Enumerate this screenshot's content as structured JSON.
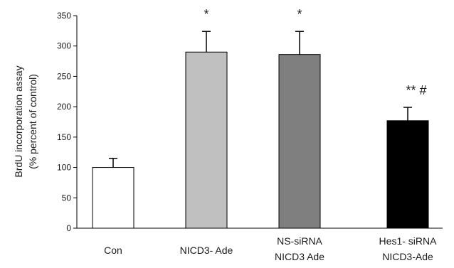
{
  "chart_data": {
    "type": "bar",
    "title": "",
    "xlabel": "",
    "ylabel_lines": [
      "BrdU incorporation assay",
      "(% percent of control)"
    ],
    "categories": [
      [
        "Con"
      ],
      [
        "NICD3- Ade"
      ],
      [
        "NS-siRNA",
        "NICD3 Ade"
      ],
      [
        "Hes1- siRNA",
        "NICD3-Ade"
      ]
    ],
    "values": [
      100,
      290,
      286,
      177
    ],
    "errors": [
      15,
      34,
      38,
      22
    ],
    "annotations": [
      "",
      "*",
      "*",
      "**   #"
    ],
    "ylim": [
      0,
      350
    ],
    "yticks": [
      0,
      50,
      100,
      150,
      200,
      250,
      300,
      350
    ],
    "bar_colors": [
      "#ffffff",
      "#c0c0c0",
      "#7f7f7f",
      "#000000"
    ],
    "bar_edge": "#000000",
    "grid": false,
    "legend": "none"
  }
}
